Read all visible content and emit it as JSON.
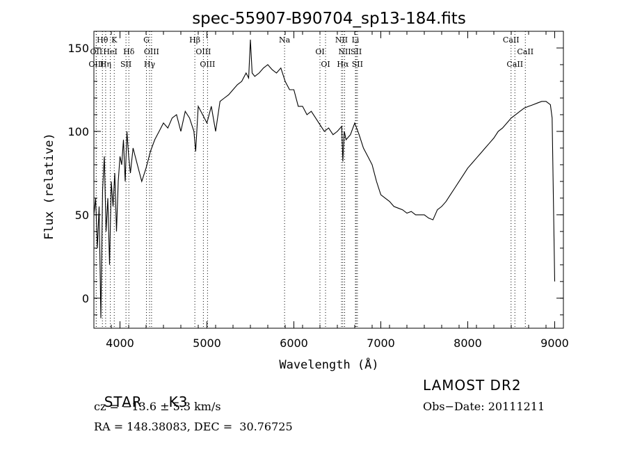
{
  "chart_data": {
    "type": "line",
    "title": "spec-55907-B90704_sp13-184.fits",
    "xlabel": "Wavelength (Å)",
    "ylabel": "Flux (relative)",
    "xlim": [
      3700,
      9100
    ],
    "ylim": [
      -18,
      160
    ],
    "xticks": [
      "4000",
      "5000",
      "6000",
      "7000",
      "8000",
      "9000"
    ],
    "yticks": [
      "0",
      "50",
      "100",
      "150"
    ],
    "grid": false,
    "series": [
      {
        "x": [
          3700,
          3720,
          3740,
          3760,
          3780,
          3800,
          3820,
          3840,
          3860,
          3880,
          3900,
          3920,
          3940,
          3960,
          3980,
          4000,
          4020,
          4040,
          4060,
          4080,
          4100,
          4120,
          4150,
          4200,
          4250,
          4300,
          4350,
          4400,
          4450,
          4500,
          4550,
          4600,
          4650,
          4700,
          4750,
          4800,
          4850,
          4870,
          4900,
          4950,
          5000,
          5050,
          5100,
          5150,
          5200,
          5250,
          5300,
          5350,
          5400,
          5450,
          5480,
          5500,
          5520,
          5550,
          5600,
          5650,
          5700,
          5750,
          5800,
          5850,
          5900,
          5950,
          6000,
          6050,
          6100,
          6150,
          6200,
          6250,
          6300,
          6350,
          6400,
          6450,
          6500,
          6550,
          6563,
          6580,
          6600,
          6650,
          6700,
          6750,
          6800,
          6850,
          6900,
          6950,
          7000,
          7050,
          7100,
          7150,
          7200,
          7250,
          7300,
          7350,
          7400,
          7450,
          7500,
          7550,
          7600,
          7650,
          7700,
          7750,
          7800,
          7850,
          7900,
          7950,
          8000,
          8050,
          8100,
          8150,
          8200,
          8250,
          8300,
          8350,
          8400,
          8450,
          8500,
          8550,
          8600,
          8650,
          8700,
          8750,
          8800,
          8850,
          8900,
          8950,
          8970,
          8985,
          9000
        ],
        "y": [
          50,
          60,
          30,
          55,
          -12,
          65,
          85,
          40,
          60,
          20,
          70,
          55,
          75,
          40,
          70,
          85,
          80,
          95,
          70,
          100,
          85,
          75,
          90,
          80,
          70,
          78,
          88,
          95,
          100,
          105,
          102,
          108,
          110,
          100,
          112,
          108,
          100,
          88,
          115,
          110,
          105,
          115,
          100,
          118,
          120,
          122,
          125,
          128,
          130,
          135,
          132,
          155,
          135,
          133,
          135,
          138,
          140,
          137,
          135,
          138,
          130,
          125,
          125,
          115,
          115,
          110,
          112,
          108,
          104,
          100,
          102,
          98,
          100,
          103,
          82,
          100,
          95,
          98,
          105,
          98,
          90,
          85,
          80,
          70,
          62,
          60,
          58,
          55,
          54,
          53,
          51,
          52,
          50,
          50,
          50,
          48,
          47,
          53,
          55,
          58,
          62,
          66,
          70,
          74,
          78,
          81,
          84,
          87,
          90,
          93,
          96,
          100,
          102,
          105,
          108,
          110,
          112,
          114,
          115,
          116,
          117,
          118,
          118,
          116,
          108,
          60,
          10
        ]
      }
    ],
    "lines": [
      {
        "name": "Hθ",
        "wl": 3798,
        "row": 0
      },
      {
        "name": "K",
        "wl": 3934,
        "row": 0
      },
      {
        "name": "G",
        "wl": 4304,
        "row": 0
      },
      {
        "name": "Hβ",
        "wl": 4861,
        "row": 0
      },
      {
        "name": "Na",
        "wl": 5893,
        "row": 0
      },
      {
        "name": "NII",
        "wl": 6548,
        "row": 0
      },
      {
        "name": "Li",
        "wl": 6708,
        "row": 0
      },
      {
        "name": "CaII",
        "wl": 8498,
        "row": 0
      },
      {
        "name": "OII",
        "wl": 3727,
        "row": 1
      },
      {
        "name": "HeI",
        "wl": 3889,
        "row": 1
      },
      {
        "name": "Hδ",
        "wl": 4102,
        "row": 1
      },
      {
        "name": "OIII",
        "wl": 4363,
        "row": 1
      },
      {
        "name": "OIII",
        "wl": 4959,
        "row": 1
      },
      {
        "name": "OI",
        "wl": 6300,
        "row": 1
      },
      {
        "name": "NII",
        "wl": 6584,
        "row": 1
      },
      {
        "name": "SII",
        "wl": 6717,
        "row": 1
      },
      {
        "name": "CaII",
        "wl": 8662,
        "row": 1
      },
      {
        "name": "OIII",
        "wl": 3727,
        "row": 2
      },
      {
        "name": "Hη",
        "wl": 3835,
        "row": 2
      },
      {
        "name": "SII",
        "wl": 4069,
        "row": 2
      },
      {
        "name": "Hγ",
        "wl": 4340,
        "row": 2
      },
      {
        "name": "OIII",
        "wl": 5007,
        "row": 2
      },
      {
        "name": "OI",
        "wl": 6364,
        "row": 2
      },
      {
        "name": "Hα",
        "wl": 6563,
        "row": 2
      },
      {
        "name": "SII",
        "wl": 6731,
        "row": 2
      },
      {
        "name": "CaII",
        "wl": 8542,
        "row": 2
      }
    ]
  },
  "info": {
    "class": "STAR",
    "subclass": "K3",
    "survey": "LAMOST DR2",
    "velocity": "cz = −13.6 ± 5.3 km/s",
    "obsdate": "Obs−Date: 20111211",
    "coords": "RA = 148.38083, DEC =  30.76725"
  }
}
